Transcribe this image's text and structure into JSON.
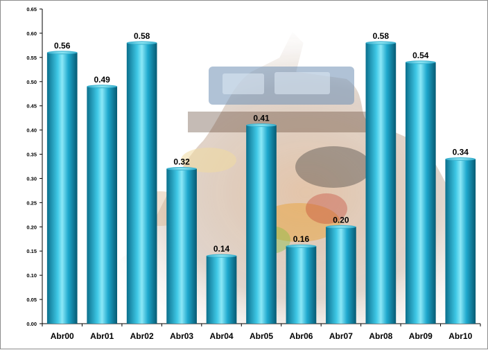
{
  "chart_data": {
    "type": "bar",
    "title": "",
    "xlabel": "",
    "ylabel": "",
    "categories": [
      "Abr00",
      "Abr01",
      "Abr02",
      "Abr03",
      "Abr04",
      "Abr05",
      "Abr06",
      "Abr07",
      "Abr08",
      "Abr09",
      "Abr10"
    ],
    "values": [
      0.56,
      0.49,
      0.58,
      0.32,
      0.14,
      0.41,
      0.16,
      0.2,
      0.58,
      0.54,
      0.34
    ],
    "data_labels": [
      "0.56",
      "0.49",
      "0.58",
      "0.32",
      "0.14",
      "0.41",
      "0.16",
      "0.20",
      "0.58",
      "0.54",
      "0.34"
    ],
    "ylim": [
      0,
      0.65
    ],
    "yticks": [
      "0.00",
      "0.05",
      "0.10",
      "0.15",
      "0.20",
      "0.25",
      "0.30",
      "0.35",
      "0.40",
      "0.45",
      "0.50",
      "0.55",
      "0.60",
      "0.65"
    ],
    "grid": false,
    "legend": "none",
    "bar_color": "#1aa6c9",
    "bar_highlight": "#7fe3f5",
    "bar_shadow": "#0a5f79",
    "background_image": "collage of groceries, telephone and packaged goods"
  }
}
